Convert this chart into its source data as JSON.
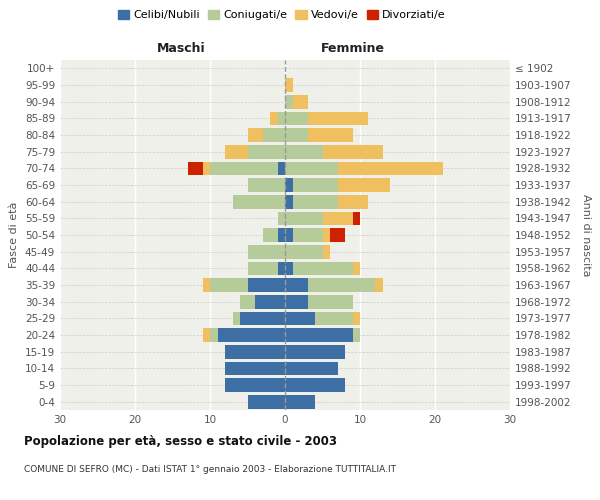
{
  "age_groups": [
    "0-4",
    "5-9",
    "10-14",
    "15-19",
    "20-24",
    "25-29",
    "30-34",
    "35-39",
    "40-44",
    "45-49",
    "50-54",
    "55-59",
    "60-64",
    "65-69",
    "70-74",
    "75-79",
    "80-84",
    "85-89",
    "90-94",
    "95-99",
    "100+"
  ],
  "birth_years": [
    "1998-2002",
    "1993-1997",
    "1988-1992",
    "1983-1987",
    "1978-1982",
    "1973-1977",
    "1968-1972",
    "1963-1967",
    "1958-1962",
    "1953-1957",
    "1948-1952",
    "1943-1947",
    "1938-1942",
    "1933-1937",
    "1928-1932",
    "1923-1927",
    "1918-1922",
    "1913-1917",
    "1908-1912",
    "1903-1907",
    "≤ 1902"
  ],
  "maschi": {
    "celibi": [
      5,
      8,
      8,
      8,
      9,
      6,
      4,
      5,
      1,
      0,
      1,
      0,
      0,
      0,
      1,
      0,
      0,
      0,
      0,
      0,
      0
    ],
    "coniugati": [
      0,
      0,
      0,
      0,
      1,
      1,
      2,
      5,
      4,
      5,
      2,
      1,
      7,
      5,
      9,
      5,
      3,
      1,
      0,
      0,
      0
    ],
    "vedovi": [
      0,
      0,
      0,
      0,
      1,
      0,
      0,
      1,
      0,
      0,
      0,
      0,
      0,
      0,
      1,
      3,
      2,
      1,
      0,
      0,
      0
    ],
    "divorziati": [
      0,
      0,
      0,
      0,
      0,
      0,
      0,
      0,
      0,
      0,
      0,
      0,
      0,
      0,
      2,
      0,
      0,
      0,
      0,
      0,
      0
    ]
  },
  "femmine": {
    "nubili": [
      4,
      8,
      7,
      8,
      9,
      4,
      3,
      3,
      1,
      0,
      1,
      0,
      1,
      1,
      0,
      0,
      0,
      0,
      0,
      0,
      0
    ],
    "coniugate": [
      0,
      0,
      0,
      0,
      1,
      5,
      6,
      9,
      8,
      5,
      4,
      5,
      6,
      6,
      7,
      5,
      3,
      3,
      1,
      0,
      0
    ],
    "vedove": [
      0,
      0,
      0,
      0,
      0,
      1,
      0,
      1,
      1,
      1,
      1,
      4,
      4,
      7,
      14,
      8,
      6,
      8,
      2,
      1,
      0
    ],
    "divorziate": [
      0,
      0,
      0,
      0,
      0,
      0,
      0,
      0,
      0,
      0,
      2,
      1,
      0,
      0,
      0,
      0,
      0,
      0,
      0,
      0,
      0
    ]
  },
  "colors": {
    "celibi": "#3d6fa5",
    "coniugati": "#b5cb9a",
    "vedovi": "#f0c060",
    "divorziati": "#cc2200"
  },
  "xlim": [
    -30,
    30
  ],
  "xticks": [
    -30,
    -20,
    -10,
    0,
    10,
    20,
    30
  ],
  "xticklabels": [
    "30",
    "20",
    "10",
    "0",
    "10",
    "20",
    "30"
  ],
  "title": "Popolazione per età, sesso e stato civile - 2003",
  "subtitle": "COMUNE DI SEFRO (MC) - Dati ISTAT 1° gennaio 2003 - Elaborazione TUTTITALIA.IT",
  "ylabel_left": "Fasce di età",
  "ylabel_right": "Anni di nascita",
  "label_maschi": "Maschi",
  "label_femmine": "Femmine",
  "legend_labels": [
    "Celibi/Nubili",
    "Coniugati/e",
    "Vedovi/e",
    "Divorziati/e"
  ],
  "bg_color": "#f0f0eb",
  "bar_height": 0.82
}
